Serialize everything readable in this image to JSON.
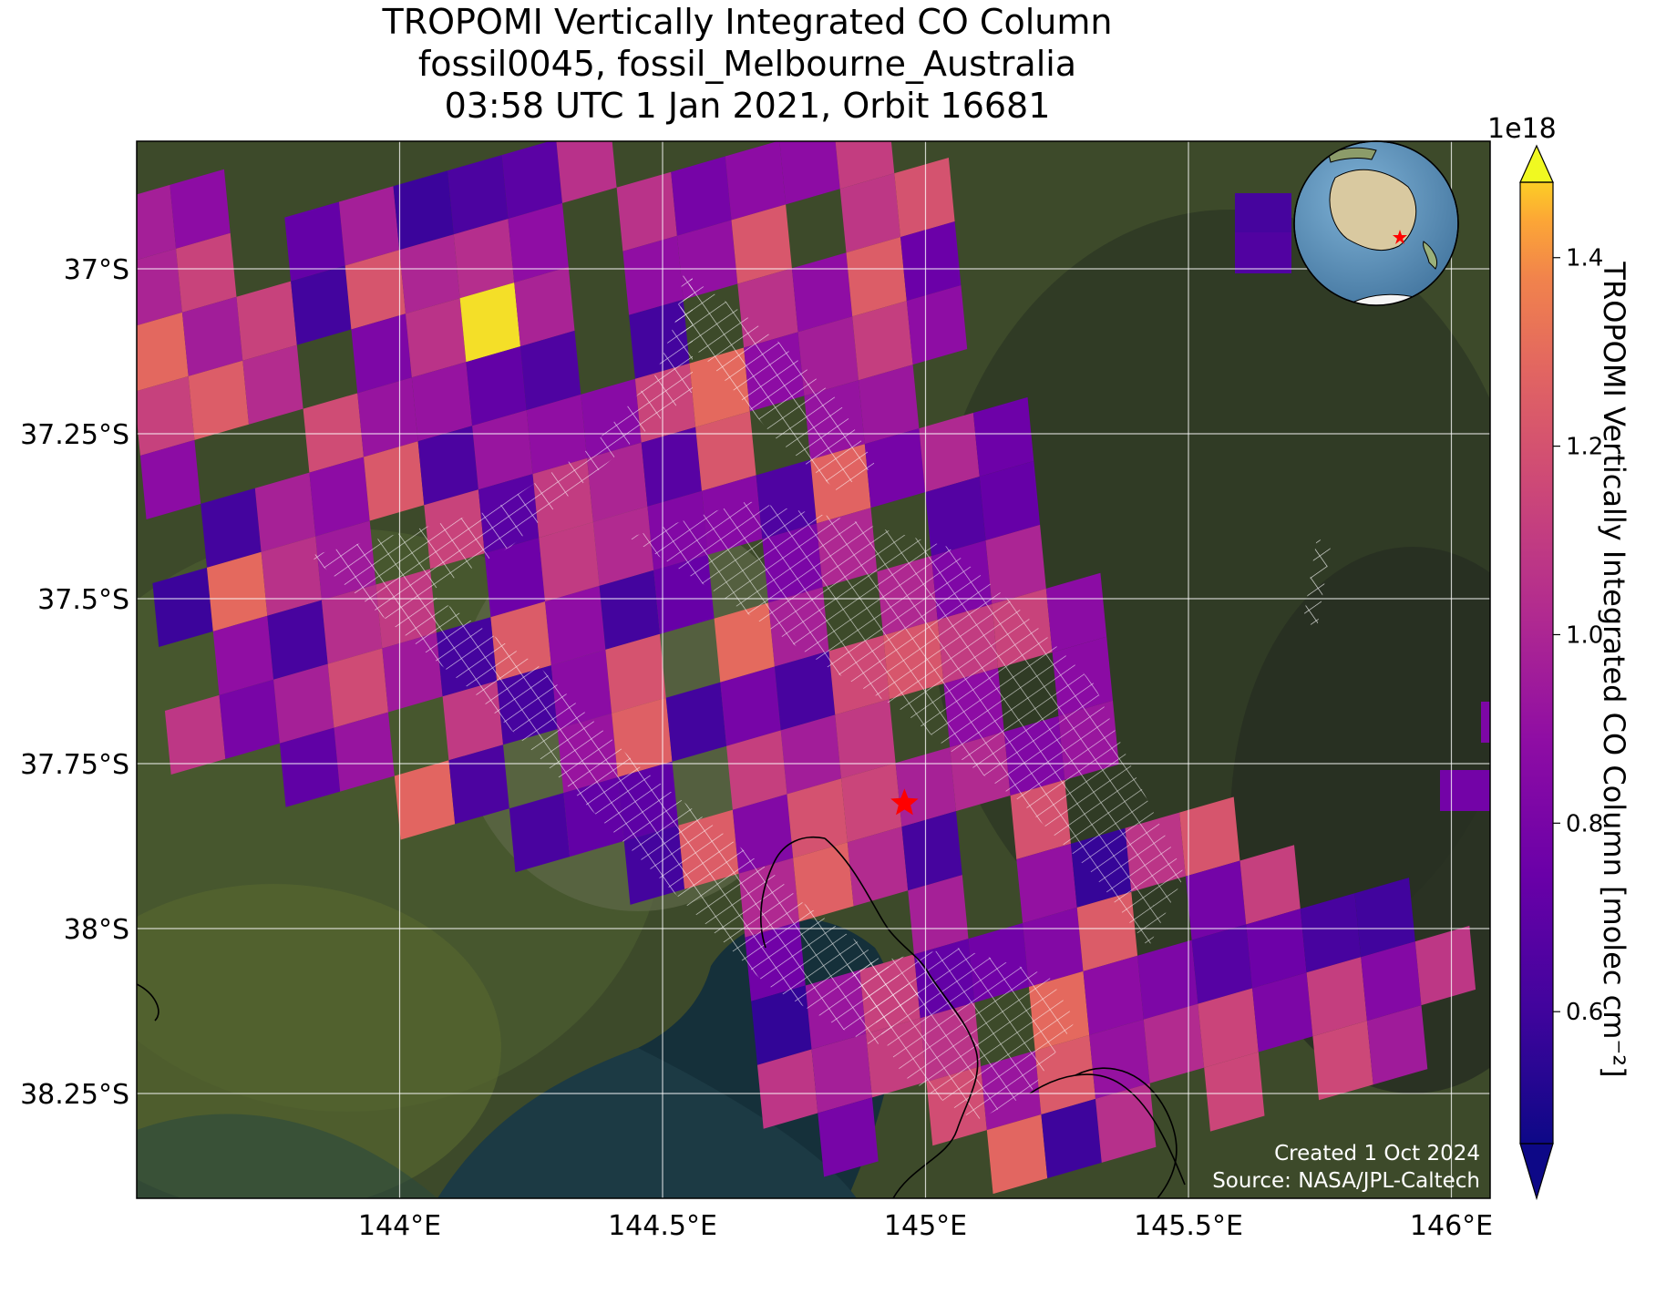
{
  "title": {
    "line1": "TROPOMI Vertically Integrated CO Column",
    "line2": "fossil0045, fossil_Melbourne_Australia",
    "line3": "03:58 UTC 1 Jan 2021, Orbit 16681"
  },
  "colorbar": {
    "label": "TROPOMI Vertically Integrated CO Column [molec cm⁻²]",
    "scale_label": "1e18",
    "ticks": [
      "0.6",
      "0.8",
      "1.0",
      "1.2",
      "1.4"
    ],
    "colormap": "plasma",
    "range": [
      0.46,
      1.48
    ]
  },
  "credits": {
    "line1": "Created 1 Oct 2024",
    "line2": "Source: NASA/JPL-Caltech"
  },
  "chart_data": {
    "type": "heatmap",
    "basemap": "satellite-imagery",
    "lon_ticks": [
      "144°E",
      "144.5°E",
      "145°E",
      "145.5°E",
      "146°E"
    ],
    "lat_ticks": [
      "37°S",
      "37.25°S",
      "37.5°S",
      "37.75°S",
      "38°S",
      "38.25°S"
    ],
    "lon_range": [
      143.5,
      146.1
    ],
    "lat_range": [
      -38.45,
      -36.8
    ],
    "grid": true,
    "target": {
      "name": "fossil_Melbourne_Australia",
      "lon": 144.96,
      "lat": -37.81,
      "marker": "red-star"
    },
    "inset_globe": {
      "shown": true,
      "placement": "top-right",
      "marker": "red-star"
    },
    "hatched_region": {
      "style": "white-crosshatch",
      "meaning": "masked/flagged pixels"
    },
    "value_units": "molec cm^-2 (x1e18)"
  }
}
